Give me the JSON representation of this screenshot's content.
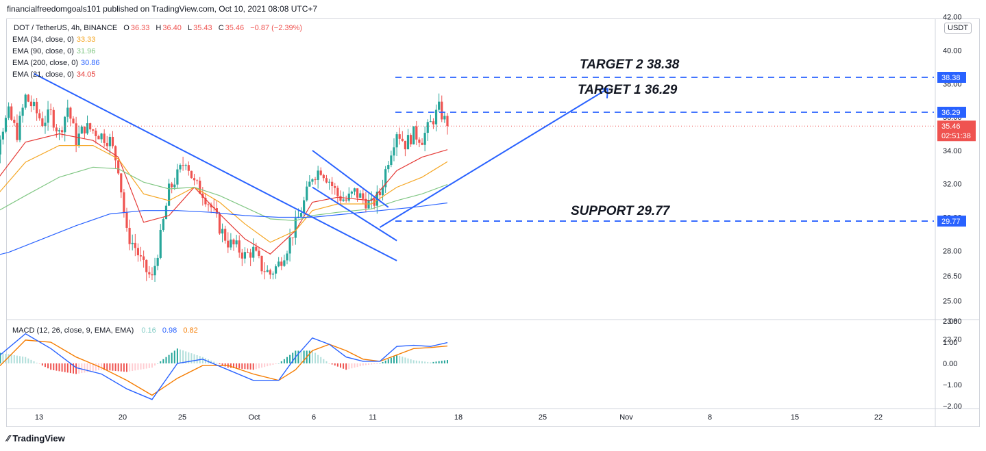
{
  "header": {
    "published": "financialfreedomgoals101 published on TradingView.com, Oct 10, 2021 08:08 UTC+7"
  },
  "legend": {
    "symbol": "DOT / TetherUS, 4h, BINANCE",
    "o_label": "O",
    "o": "36.33",
    "h_label": "H",
    "h": "36.40",
    "l_label": "L",
    "l": "35.43",
    "c_label": "C",
    "c": "35.46",
    "change": "−0.87 (−2.39%)",
    "emas": [
      {
        "label": "EMA (34, close, 0)",
        "value": "33.33",
        "color": "#f5a623"
      },
      {
        "label": "EMA (90, close, 0)",
        "value": "31.96",
        "color": "#81c784"
      },
      {
        "label": "EMA (200, close, 0)",
        "value": "30.86",
        "color": "#2962ff"
      },
      {
        "label": "EMA (21, close, 0)",
        "value": "34.05",
        "color": "#e53935"
      }
    ],
    "macd_label": "MACD (12, 26, close, 9, EMA, EMA)",
    "macd_hist": "0.16",
    "macd_line": "0.98",
    "macd_signal": "0.82"
  },
  "currency": "USDT",
  "annotations": {
    "target2": "TARGET 2  38.38",
    "target1": "TARGET 1  36.29",
    "support": "SUPPORT 29.77"
  },
  "price_badges": {
    "t2": "38.38",
    "t1": "36.29",
    "last": "35.46",
    "countdown": "02:51:38",
    "support": "29.77"
  },
  "footer": {
    "brand": "TradingView"
  },
  "colors": {
    "up": "#26a69a",
    "down": "#ef5350",
    "accent": "#2962ff",
    "ema34": "#f5a623",
    "ema90": "#81c784",
    "ema200": "#2962ff",
    "ema21": "#e53935"
  },
  "chart_data": {
    "type": "candlestick",
    "symbol": "DOT / TetherUS",
    "timeframe": "4h",
    "price_axis": {
      "ticks": [
        "42.00",
        "40.00",
        "38.00",
        "36.00",
        "34.00",
        "32.00",
        "30.00",
        "28.00",
        "26.50",
        "25.00",
        "23.80",
        "22.70"
      ],
      "range": [
        22.7,
        42.0
      ]
    },
    "macd_axis": {
      "ticks": [
        "2.00",
        "1.00",
        "0.00",
        "−1.00",
        "−2.00"
      ],
      "range": [
        -2,
        2
      ]
    },
    "x_ticks": [
      "13",
      "20",
      "25",
      "Oct",
      "6",
      "11",
      "18",
      "25",
      "Nov",
      "8",
      "15",
      "22"
    ],
    "levels": [
      {
        "name": "Target 2",
        "value": 38.38
      },
      {
        "name": "Target 1",
        "value": 36.29
      },
      {
        "name": "Support",
        "value": 29.77
      }
    ],
    "last_price": 35.46,
    "close_path": [
      [
        11.0,
        30.6
      ],
      [
        11.5,
        28.5
      ],
      [
        12.0,
        32.5
      ],
      [
        12.5,
        35.0
      ],
      [
        13.0,
        36.2
      ],
      [
        13.5,
        35.0
      ],
      [
        14.0,
        37.2
      ],
      [
        14.5,
        36.5
      ],
      [
        15.0,
        35.7
      ],
      [
        15.5,
        36.2
      ],
      [
        16.0,
        35.0
      ],
      [
        16.5,
        36.6
      ],
      [
        17.0,
        34.6
      ],
      [
        17.5,
        35.4
      ],
      [
        18.0,
        35.2
      ],
      [
        18.5,
        34.9
      ],
      [
        19.0,
        34.6
      ],
      [
        19.5,
        33.0
      ],
      [
        20.0,
        29.0
      ],
      [
        20.5,
        28.2
      ],
      [
        21.0,
        27.0
      ],
      [
        21.5,
        26.3
      ],
      [
        22.0,
        28.8
      ],
      [
        22.5,
        31.6
      ],
      [
        23.0,
        32.5
      ],
      [
        23.5,
        33.5
      ],
      [
        24.0,
        32.0
      ],
      [
        24.5,
        31.5
      ],
      [
        25.0,
        30.6
      ],
      [
        25.5,
        29.4
      ],
      [
        26.0,
        28.5
      ],
      [
        26.5,
        28.2
      ],
      [
        27.0,
        27.7
      ],
      [
        27.5,
        28.0
      ],
      [
        28.0,
        27.0
      ],
      [
        28.5,
        26.6
      ],
      [
        29.0,
        27.2
      ],
      [
        29.5,
        28.2
      ],
      [
        30.0,
        29.5
      ],
      [
        30.5,
        30.9
      ],
      [
        31.0,
        32.5
      ],
      [
        31.5,
        32.9
      ],
      [
        32.0,
        32.2
      ],
      [
        32.5,
        31.3
      ],
      [
        33.0,
        31.0
      ],
      [
        33.5,
        31.5
      ],
      [
        34.0,
        31.1
      ],
      [
        34.5,
        30.7
      ],
      [
        35.0,
        31.4
      ],
      [
        35.5,
        33.5
      ],
      [
        36.0,
        35.2
      ],
      [
        36.5,
        34.4
      ],
      [
        37.0,
        35.0
      ],
      [
        37.5,
        34.7
      ],
      [
        38.0,
        35.6
      ],
      [
        38.5,
        36.5
      ],
      [
        39.0,
        35.46
      ]
    ],
    "ema": [
      {
        "name": "EMA 21",
        "points": [
          [
            11.0,
            30.5
          ],
          [
            14,
            34.5
          ],
          [
            16,
            35.0
          ],
          [
            18,
            34.6
          ],
          [
            19.5,
            33.6
          ],
          [
            21,
            29.7
          ],
          [
            22.5,
            30.1
          ],
          [
            24,
            31.8
          ],
          [
            25.5,
            30.2
          ],
          [
            27,
            28.7
          ],
          [
            28.5,
            27.8
          ],
          [
            30,
            29.2
          ],
          [
            31,
            30.9
          ],
          [
            32.5,
            31.2
          ],
          [
            34.5,
            31.0
          ],
          [
            36,
            32.8
          ],
          [
            37.5,
            33.6
          ],
          [
            39,
            34.05
          ]
        ]
      },
      {
        "name": "EMA 34",
        "points": [
          [
            11.0,
            29.8
          ],
          [
            14,
            33.3
          ],
          [
            16,
            34.3
          ],
          [
            18,
            34.3
          ],
          [
            19.5,
            33.5
          ],
          [
            21,
            31.4
          ],
          [
            22.5,
            31.0
          ],
          [
            24,
            31.8
          ],
          [
            25.5,
            30.9
          ],
          [
            27,
            29.6
          ],
          [
            28.5,
            28.5
          ],
          [
            30,
            29.2
          ],
          [
            31,
            30.4
          ],
          [
            32.5,
            30.8
          ],
          [
            34.5,
            30.8
          ],
          [
            36,
            31.8
          ],
          [
            37.5,
            32.4
          ],
          [
            39,
            33.33
          ]
        ]
      },
      {
        "name": "EMA 90",
        "points": [
          [
            11.0,
            29.6
          ],
          [
            14,
            31.3
          ],
          [
            16,
            32.4
          ],
          [
            18,
            33.0
          ],
          [
            19.5,
            32.9
          ],
          [
            21,
            32.1
          ],
          [
            22.5,
            31.7
          ],
          [
            24,
            31.8
          ],
          [
            25.5,
            31.3
          ],
          [
            27,
            30.6
          ],
          [
            28.5,
            29.9
          ],
          [
            30,
            29.8
          ],
          [
            31,
            30.1
          ],
          [
            32.5,
            30.3
          ],
          [
            34.5,
            30.5
          ],
          [
            36,
            31.0
          ],
          [
            37.5,
            31.4
          ],
          [
            39,
            31.96
          ]
        ]
      },
      {
        "name": "EMA 200",
        "points": [
          [
            11.0,
            27.4
          ],
          [
            13,
            27.9
          ],
          [
            15,
            28.7
          ],
          [
            17,
            29.5
          ],
          [
            19,
            30.2
          ],
          [
            21,
            30.4
          ],
          [
            23,
            30.4
          ],
          [
            25,
            30.3
          ],
          [
            27,
            30.1
          ],
          [
            29,
            30.0
          ],
          [
            31,
            30.0
          ],
          [
            33,
            30.2
          ],
          [
            35,
            30.4
          ],
          [
            37,
            30.6
          ],
          [
            39,
            30.86
          ]
        ]
      }
    ],
    "trendlines": [
      {
        "name": "descending resistance",
        "from": [
          14.5,
          38.6
        ],
        "to": [
          36.0,
          27.4
        ]
      },
      {
        "name": "flag upper",
        "from": [
          31.0,
          34.0
        ],
        "to": [
          35.5,
          30.6
        ]
      },
      {
        "name": "flag lower",
        "from": [
          31.0,
          31.8
        ],
        "to": [
          36.0,
          28.6
        ]
      },
      {
        "name": "projection arrow",
        "from": [
          35.0,
          29.4
        ],
        "to": [
          48.5,
          37.7
        ]
      }
    ],
    "macd": {
      "line": [
        [
          11,
          -0.6
        ],
        [
          12.5,
          0.4
        ],
        [
          14,
          1.4
        ],
        [
          15.5,
          0.7
        ],
        [
          17,
          -0.2
        ],
        [
          18.5,
          -0.5
        ],
        [
          20,
          -1.2
        ],
        [
          21.5,
          -1.7
        ],
        [
          23,
          0.0
        ],
        [
          24.5,
          0.2
        ],
        [
          26,
          -0.3
        ],
        [
          27.5,
          -0.8
        ],
        [
          29,
          -0.8
        ],
        [
          30,
          0.3
        ],
        [
          31,
          1.2
        ],
        [
          32,
          0.9
        ],
        [
          33,
          0.3
        ],
        [
          34,
          0.1
        ],
        [
          35,
          0.1
        ],
        [
          36,
          0.8
        ],
        [
          37,
          0.85
        ],
        [
          38,
          0.8
        ],
        [
          39,
          0.98
        ]
      ],
      "signal": [
        [
          11,
          -0.7
        ],
        [
          12.5,
          -0.1
        ],
        [
          14,
          1.1
        ],
        [
          15.5,
          1.0
        ],
        [
          17,
          0.3
        ],
        [
          18.5,
          -0.2
        ],
        [
          20,
          -0.8
        ],
        [
          21.5,
          -1.5
        ],
        [
          23,
          -0.7
        ],
        [
          24.5,
          -0.1
        ],
        [
          26,
          -0.1
        ],
        [
          27.5,
          -0.5
        ],
        [
          29,
          -0.8
        ],
        [
          30,
          -0.3
        ],
        [
          31,
          0.6
        ],
        [
          32,
          0.9
        ],
        [
          33,
          0.6
        ],
        [
          34,
          0.2
        ],
        [
          35,
          0.1
        ],
        [
          36,
          0.4
        ],
        [
          37,
          0.7
        ],
        [
          38,
          0.75
        ],
        [
          39,
          0.82
        ]
      ]
    }
  }
}
